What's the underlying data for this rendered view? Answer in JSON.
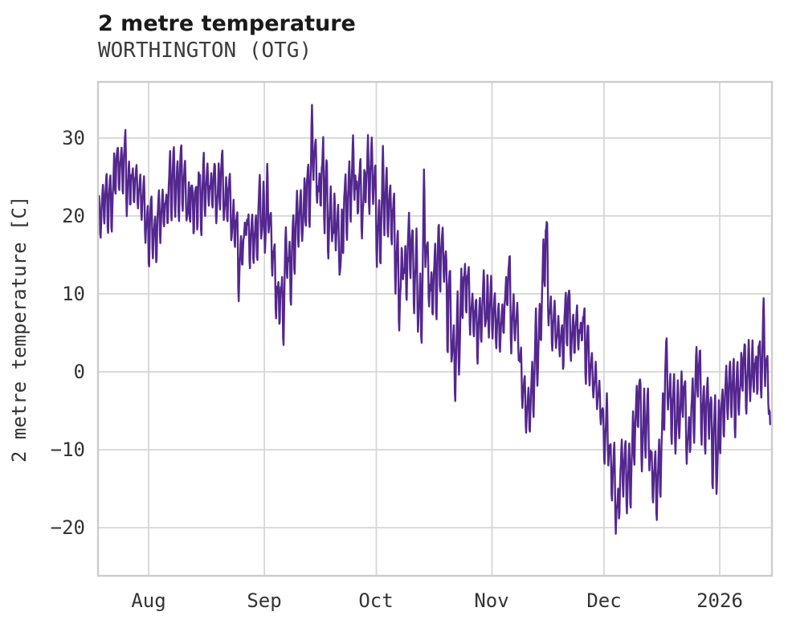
{
  "header": {
    "title": "2 metre temperature",
    "subtitle": "WORTHINGTON (OTG)"
  },
  "chart_data": {
    "type": "line",
    "title": "2 metre temperature",
    "subtitle": "WORTHINGTON (OTG)",
    "xlabel": "",
    "ylabel": "2 metre temperature [C]",
    "series_name": "2 metre temperature",
    "legend": "none",
    "grid": true,
    "line_color": "#54278f",
    "grid_color": "#d6d6d6",
    "spine_color": "#cccccc",
    "text_color": "#343434",
    "x_tick_labels": [
      "Aug",
      "Sep",
      "Oct",
      "Nov",
      "Dec",
      "2026"
    ],
    "x_tick_days": [
      0,
      31,
      61,
      92,
      122,
      153
    ],
    "y_tick_labels": [
      "30",
      "20",
      "10",
      "0",
      "−10",
      "−20"
    ],
    "y_ticks": [
      30,
      20,
      10,
      0,
      -10,
      -20
    ],
    "ylim": [
      -26.2,
      37.2
    ],
    "xlim_days": [
      -13.6,
      166.6
    ],
    "x_epoch_note": "day 0 = Aug 1; axis spans ~Jul 18 to ~Jan 15 (2026)",
    "series": {
      "name": "2 metre temperature",
      "sampling": "estimated envelope waypoints [day, mean_C, half_range_C] read from plot",
      "waypoints": [
        [
          -13.6,
          20.5,
          3.5
        ],
        [
          -12,
          22,
          4
        ],
        [
          -10,
          23.5,
          4
        ],
        [
          -8,
          25.5,
          4.5
        ],
        [
          -6,
          26,
          5.5
        ],
        [
          -4,
          23.5,
          4.5
        ],
        [
          -2,
          21.5,
          4
        ],
        [
          0,
          19,
          4.5
        ],
        [
          2,
          17.5,
          5
        ],
        [
          4,
          21,
          4
        ],
        [
          6,
          24,
          5
        ],
        [
          8,
          24.5,
          5
        ],
        [
          10,
          22,
          4
        ],
        [
          12,
          21,
          4.5
        ],
        [
          14,
          23.5,
          5
        ],
        [
          16,
          24.5,
          4.5
        ],
        [
          18,
          23,
          4
        ],
        [
          20,
          23.5,
          5
        ],
        [
          22,
          21,
          4
        ],
        [
          23,
          19,
          4.5
        ],
        [
          24,
          12.5,
          6
        ],
        [
          25,
          16,
          4
        ],
        [
          26,
          19,
          4
        ],
        [
          28,
          16.5,
          4.5
        ],
        [
          30,
          19.5,
          4.5
        ],
        [
          32,
          21,
          5.5
        ],
        [
          34,
          12,
          6
        ],
        [
          35.8,
          9,
          6.5
        ],
        [
          37,
          13,
          5
        ],
        [
          39,
          17,
          5
        ],
        [
          41,
          20,
          5
        ],
        [
          43,
          25,
          6
        ],
        [
          44.2,
          28,
          6.5
        ],
        [
          45.5,
          22,
          5
        ],
        [
          47,
          26,
          6.5
        ],
        [
          48.5,
          20,
          5
        ],
        [
          50,
          18,
          5
        ],
        [
          51.5,
          15.5,
          5
        ],
        [
          53,
          21,
          6
        ],
        [
          55,
          24,
          6
        ],
        [
          57,
          22,
          6
        ],
        [
          59,
          24,
          6.5
        ],
        [
          60,
          25,
          6.5
        ],
        [
          61.5,
          20,
          6
        ],
        [
          63,
          22,
          6
        ],
        [
          64.5,
          24.5,
          6.5
        ],
        [
          66,
          17,
          6
        ],
        [
          67.5,
          12.5,
          6
        ],
        [
          69,
          15,
          5.5
        ],
        [
          70.5,
          17.5,
          5.5
        ],
        [
          72.5,
          7.5,
          6
        ],
        [
          74,
          19,
          7
        ],
        [
          75.5,
          11,
          5
        ],
        [
          77,
          13.5,
          5.5
        ],
        [
          78.5,
          16,
          5
        ],
        [
          80,
          9,
          5
        ],
        [
          82.3,
          2.5,
          6
        ],
        [
          84,
          8,
          5
        ],
        [
          85.3,
          13,
          5.5
        ],
        [
          87,
          7,
          5
        ],
        [
          88.5,
          5,
          5
        ],
        [
          90,
          9.5,
          5
        ],
        [
          92,
          6,
          5
        ],
        [
          94,
          4.5,
          4.5
        ],
        [
          96.5,
          11,
          5.5
        ],
        [
          98,
          6,
          5
        ],
        [
          100,
          1.5,
          5
        ],
        [
          101.9,
          -5.5,
          5.5
        ],
        [
          103.5,
          1,
          5
        ],
        [
          105,
          5,
          5
        ],
        [
          106.4,
          15.5,
          6.5
        ],
        [
          107.5,
          7,
          5
        ],
        [
          109,
          5.5,
          4.5
        ],
        [
          111,
          4,
          4.5
        ],
        [
          112.6,
          8,
          5
        ],
        [
          114,
          3.5,
          4
        ],
        [
          116,
          5.5,
          4.5
        ],
        [
          118,
          2.5,
          4
        ],
        [
          120,
          -1,
          4
        ],
        [
          121.5,
          -5,
          4
        ],
        [
          123,
          -9,
          5
        ],
        [
          124.5,
          -13,
          6
        ],
        [
          125.7,
          -17.5,
          6
        ],
        [
          127,
          -11,
          5
        ],
        [
          128.5,
          -13.5,
          5
        ],
        [
          130,
          -6,
          5
        ],
        [
          131.5,
          -3.5,
          5.5
        ],
        [
          133,
          -7,
          5
        ],
        [
          134.5,
          -10,
          5.5
        ],
        [
          136.1,
          -17.5,
          6.5
        ],
        [
          137.5,
          -8,
          5
        ],
        [
          138.7,
          -0.5,
          6
        ],
        [
          140,
          -3,
          5
        ],
        [
          141.5,
          -6,
          5
        ],
        [
          143,
          -3,
          5
        ],
        [
          144.6,
          -10,
          6.5
        ],
        [
          146,
          -4,
          5
        ],
        [
          147.5,
          -1,
          5.5
        ],
        [
          149,
          -4,
          5
        ],
        [
          150.5,
          -8,
          6
        ],
        [
          152,
          -11.5,
          6.5
        ],
        [
          153.5,
          -4,
          5
        ],
        [
          155,
          -1.5,
          4.5
        ],
        [
          156.5,
          -4.5,
          4.5
        ],
        [
          158,
          -2,
          4
        ],
        [
          159.5,
          0.5,
          4.5
        ],
        [
          161,
          1.5,
          4.5
        ],
        [
          162.5,
          -1,
          4
        ],
        [
          164,
          2,
          4.5
        ],
        [
          165.3,
          4,
          5.5
        ],
        [
          166.1,
          -2,
          5
        ],
        [
          166.6,
          -9,
          3
        ]
      ],
      "notable_extremes": {
        "max_C": 34.5,
        "max_day": 44,
        "min_C": -23.5,
        "min_day": 136,
        "start_C_range": [
          17,
          24
        ],
        "end_C": -11.8
      }
    }
  }
}
